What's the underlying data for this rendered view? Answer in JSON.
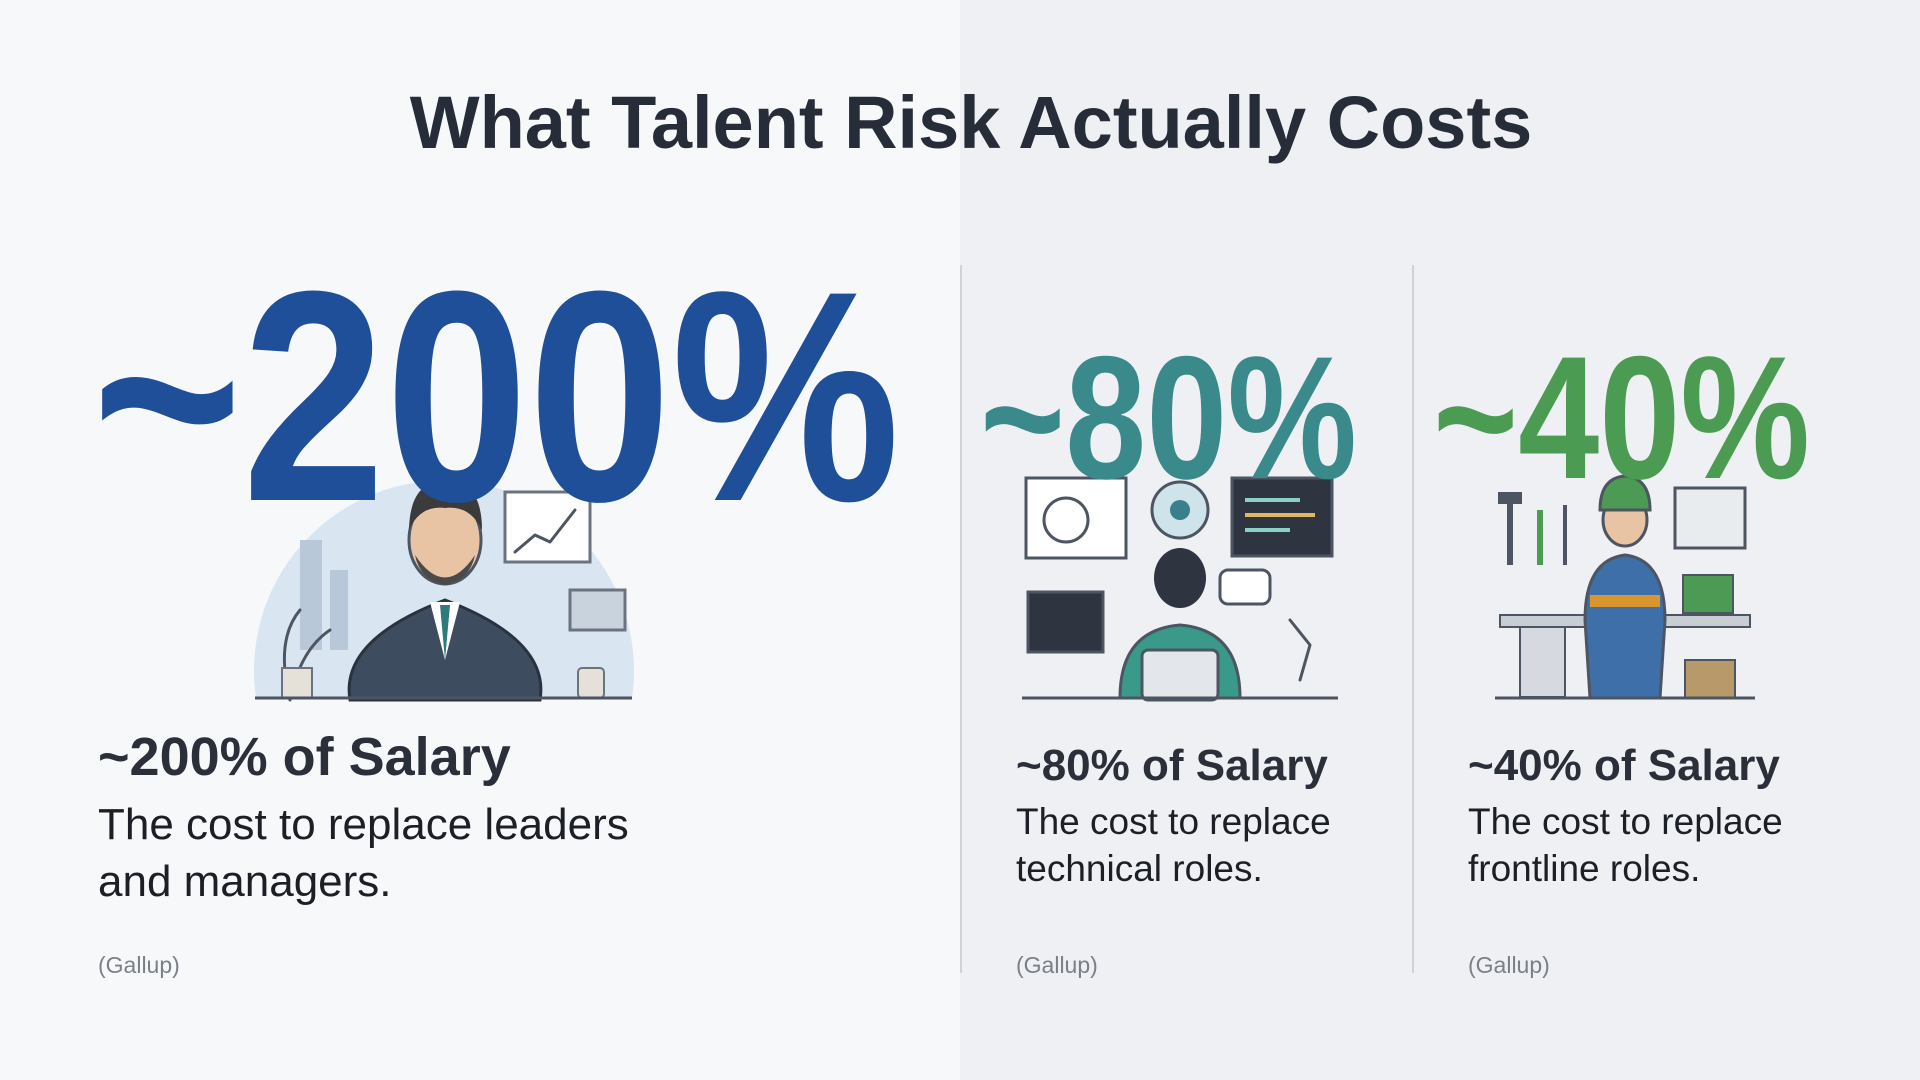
{
  "title": "What Talent Risk Actually Costs",
  "panels": [
    {
      "stat": "~200%",
      "heading": "~200% of Salary",
      "description": [
        "The cost to replace leaders",
        "and managers."
      ],
      "source": "(Gallup)"
    },
    {
      "stat": "~80%",
      "heading": "~80% of Salary",
      "description": [
        "The cost to replace",
        "technical roles."
      ],
      "source": "(Gallup)"
    },
    {
      "stat": "~40%",
      "heading": "~40% of Salary",
      "description": [
        "The cost to replace",
        "frontline roles."
      ],
      "source": "(Gallup)"
    }
  ]
}
